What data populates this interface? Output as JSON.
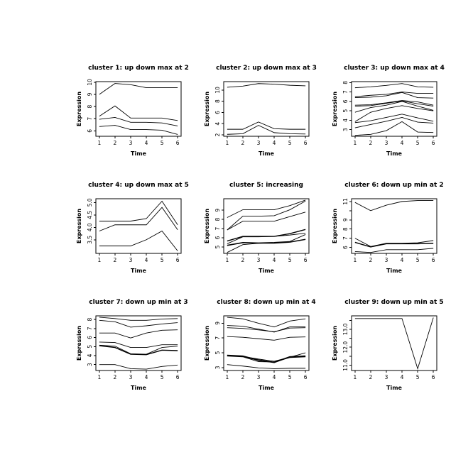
{
  "figure": {
    "background": "#ffffff",
    "line_color": "#000000",
    "text_color": "#000000",
    "layout": {
      "rows": 3,
      "cols": 3
    }
  },
  "chart_data": [
    {
      "type": "line",
      "title": "cluster 1: up down max at 2",
      "xlabel": "Time",
      "ylabel": "Expression",
      "x": [
        1,
        2,
        3,
        4,
        5,
        6
      ],
      "xlim": [
        0.78,
        6.22
      ],
      "ylim": [
        5.55,
        10.05
      ],
      "xticks": [
        1,
        2,
        3,
        4,
        5,
        6
      ],
      "yticks": [
        6,
        7,
        8,
        9,
        10
      ],
      "ytick_labels": [
        "6",
        "7",
        "8",
        "9",
        "10"
      ],
      "grid": false,
      "legend": "none",
      "series": [
        {
          "values": [
            9.0,
            9.9,
            9.8,
            9.55,
            9.55,
            9.55
          ]
        },
        {
          "values": [
            7.2,
            8.05,
            7.05,
            7.05,
            7.05,
            6.85
          ]
        },
        {
          "values": [
            6.95,
            7.1,
            6.7,
            6.7,
            6.65,
            6.4
          ]
        },
        {
          "values": [
            6.35,
            6.45,
            6.1,
            6.1,
            6.05,
            5.7
          ]
        }
      ]
    },
    {
      "type": "line",
      "title": "cluster 2: up down max at 3",
      "xlabel": "Time",
      "ylabel": "Expression",
      "x": [
        1,
        2,
        3,
        4,
        5,
        6
      ],
      "xlim": [
        0.78,
        6.22
      ],
      "ylim": [
        1.75,
        11.5
      ],
      "xticks": [
        1,
        2,
        3,
        4,
        5,
        6
      ],
      "yticks": [
        2,
        4,
        6,
        8,
        10
      ],
      "ytick_labels": [
        "2",
        "4",
        "6",
        "8",
        "10"
      ],
      "grid": false,
      "legend": "none",
      "series": [
        {
          "values": [
            10.5,
            10.7,
            11.15,
            11.05,
            10.85,
            10.75
          ]
        },
        {
          "values": [
            3.0,
            3.0,
            4.3,
            3.1,
            3.0,
            3.0
          ]
        },
        {
          "values": [
            2.1,
            2.2,
            3.7,
            2.4,
            2.2,
            2.15
          ]
        }
      ]
    },
    {
      "type": "line",
      "title": "cluster 3: up down max at 4",
      "xlabel": "Time",
      "ylabel": "Expression",
      "x": [
        1,
        2,
        3,
        4,
        5,
        6
      ],
      "xlim": [
        0.78,
        6.22
      ],
      "ylim": [
        2.3,
        8.1
      ],
      "xticks": [
        1,
        2,
        3,
        4,
        5,
        6
      ],
      "yticks": [
        3,
        4,
        5,
        6,
        7,
        8
      ],
      "ytick_labels": [
        "3",
        "4",
        "5",
        "6",
        "7",
        "8"
      ],
      "grid": false,
      "legend": "none",
      "series": [
        {
          "values": [
            7.45,
            7.55,
            7.7,
            7.9,
            7.55,
            7.5
          ]
        },
        {
          "values": [
            6.5,
            6.65,
            6.75,
            7.0,
            6.85,
            6.85
          ]
        },
        {
          "values": [
            6.4,
            6.45,
            6.6,
            6.95,
            6.4,
            6.35
          ]
        },
        {
          "values": [
            5.6,
            5.65,
            5.85,
            6.1,
            5.95,
            5.6
          ]
        },
        {
          "values": [
            5.5,
            5.55,
            5.8,
            6.05,
            5.75,
            5.5
          ]
        },
        {
          "values": [
            4.85,
            5.35,
            5.6,
            6.0,
            5.5,
            5.05
          ]
        },
        {
          "values": [
            3.85,
            4.85,
            5.25,
            5.55,
            5.25,
            5.0
          ]
        },
        {
          "values": [
            3.75,
            3.95,
            4.3,
            4.65,
            4.25,
            3.9
          ]
        },
        {
          "values": [
            3.2,
            3.55,
            3.9,
            4.3,
            3.8,
            3.7
          ]
        },
        {
          "values": [
            2.4,
            2.5,
            2.9,
            3.85,
            2.75,
            2.7
          ]
        }
      ]
    },
    {
      "type": "line",
      "title": "cluster 4: up down max at 5",
      "xlabel": "Time",
      "ylabel": "Expression",
      "x": [
        1,
        2,
        3,
        4,
        5,
        6
      ],
      "xlim": [
        0.78,
        6.22
      ],
      "ylim": [
        2.95,
        5.15
      ],
      "xticks": [
        1,
        2,
        3,
        4,
        5,
        6
      ],
      "yticks": [
        3.5,
        4.0,
        4.5,
        5.0
      ],
      "ytick_labels": [
        "3.5",
        "4.0",
        "4.5",
        "5.0"
      ],
      "grid": false,
      "legend": "none",
      "series": [
        {
          "values": [
            4.25,
            4.25,
            4.25,
            4.35,
            5.05,
            4.1
          ]
        },
        {
          "values": [
            3.85,
            4.1,
            4.1,
            4.1,
            4.8,
            3.9
          ]
        },
        {
          "values": [
            3.25,
            3.25,
            3.25,
            3.5,
            3.85,
            3.05
          ]
        }
      ]
    },
    {
      "type": "line",
      "title": "cluster 5: increasing",
      "xlabel": "Time",
      "ylabel": "Expression",
      "x": [
        1,
        2,
        3,
        4,
        5,
        6
      ],
      "xlim": [
        0.78,
        6.22
      ],
      "ylim": [
        4.3,
        10.25
      ],
      "xticks": [
        1,
        2,
        3,
        4,
        5,
        6
      ],
      "yticks": [
        5,
        6,
        7,
        8,
        9
      ],
      "ytick_labels": [
        "5",
        "6",
        "7",
        "8",
        "9"
      ],
      "grid": false,
      "legend": "none",
      "series": [
        {
          "values": [
            8.2,
            9.05,
            9.05,
            9.05,
            9.5,
            10.1
          ]
        },
        {
          "values": [
            6.85,
            8.35,
            8.35,
            8.4,
            9.05,
            10.0
          ]
        },
        {
          "values": [
            6.85,
            7.8,
            7.8,
            7.8,
            8.3,
            8.8
          ]
        },
        {
          "values": [
            5.65,
            6.15,
            6.15,
            6.15,
            6.45,
            6.9
          ],
          "lw": 1.4
        },
        {
          "values": [
            5.35,
            6.1,
            6.1,
            6.15,
            6.3,
            6.5
          ]
        },
        {
          "values": [
            5.2,
            5.5,
            5.45,
            5.5,
            5.6,
            6.35
          ]
        },
        {
          "values": [
            5.15,
            5.45,
            5.4,
            5.45,
            5.55,
            5.85
          ]
        },
        {
          "values": [
            4.4,
            5.25,
            5.4,
            5.4,
            5.5,
            5.8
          ]
        }
      ]
    },
    {
      "type": "line",
      "title": "cluster 6: down up min at 2",
      "xlabel": "Time",
      "ylabel": "Expression",
      "x": [
        1,
        2,
        3,
        4,
        5,
        6
      ],
      "xlim": [
        0.78,
        6.22
      ],
      "ylim": [
        5.35,
        11.3
      ],
      "xticks": [
        1,
        2,
        3,
        4,
        5,
        6
      ],
      "yticks": [
        6,
        7,
        8,
        9,
        10,
        11
      ],
      "ytick_labels": [
        "6",
        "7",
        "8",
        "9",
        "",
        "11"
      ],
      "grid": false,
      "legend": "none",
      "series": [
        {
          "values": [
            10.9,
            10.0,
            10.6,
            11.0,
            11.1,
            11.1
          ]
        },
        {
          "values": [
            7.0,
            6.1,
            6.45,
            6.45,
            6.5,
            6.75
          ]
        },
        {
          "values": [
            6.55,
            6.05,
            6.4,
            6.4,
            6.4,
            6.45
          ],
          "lw": 1.4
        },
        {
          "values": [
            5.55,
            5.45,
            5.75,
            5.75,
            5.75,
            5.9
          ]
        }
      ]
    },
    {
      "type": "line",
      "title": "cluster 7: down up min at 3",
      "xlabel": "Time",
      "ylabel": "Expression",
      "x": [
        1,
        2,
        3,
        4,
        5,
        6
      ],
      "xlim": [
        0.78,
        6.22
      ],
      "ylim": [
        2.35,
        8.4
      ],
      "xticks": [
        1,
        2,
        3,
        4,
        5,
        6
      ],
      "yticks": [
        3,
        4,
        5,
        6,
        7,
        8
      ],
      "ytick_labels": [
        "3",
        "4",
        "5",
        "6",
        "7",
        "8"
      ],
      "grid": false,
      "legend": "none",
      "series": [
        {
          "values": [
            8.25,
            8.1,
            7.9,
            7.9,
            8.05,
            8.1
          ]
        },
        {
          "values": [
            7.9,
            7.75,
            7.15,
            7.3,
            7.5,
            7.65
          ]
        },
        {
          "values": [
            6.5,
            6.5,
            5.95,
            6.5,
            6.8,
            6.85
          ]
        },
        {
          "values": [
            5.5,
            5.45,
            4.9,
            4.9,
            5.2,
            5.2
          ]
        },
        {
          "values": [
            5.15,
            5.05,
            4.2,
            4.15,
            4.9,
            5.05
          ]
        },
        {
          "values": [
            5.1,
            4.9,
            4.15,
            4.1,
            4.6,
            4.55
          ],
          "lw": 1.4
        },
        {
          "values": [
            3.0,
            3.0,
            2.55,
            2.5,
            2.8,
            2.95
          ]
        }
      ]
    },
    {
      "type": "line",
      "title": "cluster 8: down up min at 4",
      "xlabel": "Time",
      "ylabel": "Expression",
      "x": [
        1,
        2,
        3,
        4,
        5,
        6
      ],
      "xlim": [
        0.78,
        6.22
      ],
      "ylim": [
        2.6,
        10.0
      ],
      "xticks": [
        1,
        2,
        3,
        4,
        5,
        6
      ],
      "yticks": [
        3,
        5,
        7,
        9
      ],
      "ytick_labels": [
        "3",
        "5",
        "7",
        "9"
      ],
      "grid": false,
      "legend": "none",
      "series": [
        {
          "values": [
            9.8,
            9.6,
            9.0,
            8.5,
            9.3,
            9.6
          ]
        },
        {
          "values": [
            8.7,
            8.6,
            8.2,
            7.8,
            8.5,
            8.5
          ]
        },
        {
          "values": [
            8.4,
            8.3,
            8.1,
            7.85,
            8.35,
            8.4
          ]
        },
        {
          "values": [
            7.2,
            7.1,
            6.9,
            6.7,
            7.1,
            7.15
          ]
        },
        {
          "values": [
            4.65,
            4.55,
            4.0,
            3.7,
            4.45,
            4.55
          ],
          "lw": 1.8
        },
        {
          "values": [
            4.6,
            4.5,
            4.15,
            3.85,
            4.4,
            5.0
          ]
        },
        {
          "values": [
            4.55,
            4.45,
            3.8,
            3.75,
            4.35,
            4.45
          ]
        },
        {
          "values": [
            3.4,
            3.2,
            2.95,
            2.85,
            2.9,
            2.9
          ]
        }
      ]
    },
    {
      "type": "line",
      "title": "cluster 9: down up min at 5",
      "xlabel": "Time",
      "ylabel": "Expression",
      "x": [
        1,
        2,
        3,
        4,
        5,
        6
      ],
      "xlim": [
        0.78,
        6.22
      ],
      "ylim": [
        10.7,
        13.75
      ],
      "xticks": [
        1,
        2,
        3,
        4,
        5,
        6
      ],
      "yticks": [
        11,
        11.5,
        12,
        12.5,
        13,
        13.5
      ],
      "ytick_labels": [
        "11.0",
        "",
        "12.0",
        "",
        "13.0",
        ""
      ],
      "grid": false,
      "legend": "none",
      "series": [
        {
          "values": [
            13.6,
            13.6,
            13.6,
            13.6,
            10.8,
            13.65
          ]
        }
      ]
    }
  ]
}
